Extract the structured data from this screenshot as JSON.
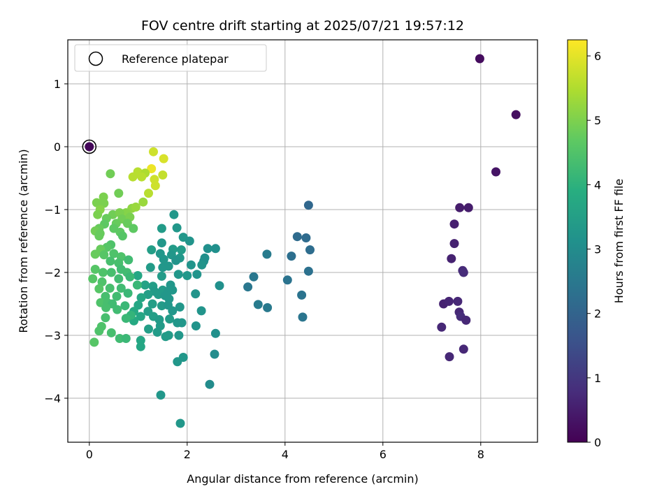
{
  "chart_data": {
    "type": "scatter",
    "title": "FOV centre drift starting at 2025/07/21 19:57:12",
    "xlabel": "Angular distance from reference (arcmin)",
    "ylabel": "Rotation from reference (arcmin)",
    "xlim": [
      -0.44,
      9.16
    ],
    "ylim": [
      -4.7,
      1.7
    ],
    "xticks": [
      0,
      2,
      4,
      6,
      8
    ],
    "yticks": [
      1,
      0,
      -1,
      -2,
      -3,
      -4
    ],
    "xtick_labels": [
      "0",
      "2",
      "4",
      "6",
      "8"
    ],
    "ytick_labels": [
      "1",
      "0",
      "−1",
      "−2",
      "−3",
      "−4"
    ],
    "grid": true,
    "legend": {
      "position": "upper-left",
      "entries": [
        "Reference platepar"
      ]
    },
    "reference_point": {
      "x": 0,
      "y": 0
    },
    "colormap": "viridis",
    "colorbar": {
      "label": "Hours from first FF file",
      "range": [
        0,
        6.25
      ],
      "ticks": [
        0,
        1,
        2,
        3,
        4,
        5,
        6
      ],
      "tick_labels": [
        "0",
        "1",
        "2",
        "3",
        "4",
        "5",
        "6"
      ]
    },
    "points": [
      [
        0,
        0,
        0.1
      ],
      [
        7.98,
        1.4,
        0.2
      ],
      [
        8.72,
        0.51,
        0.25
      ],
      [
        8.31,
        -0.4,
        0.35
      ],
      [
        7.57,
        -0.97,
        0.5
      ],
      [
        7.75,
        -0.97,
        0.5
      ],
      [
        7.46,
        -1.23,
        0.55
      ],
      [
        7.46,
        -1.54,
        0.6
      ],
      [
        7.4,
        -1.78,
        0.6
      ],
      [
        7.63,
        -1.97,
        0.75
      ],
      [
        7.65,
        -2.0,
        0.8
      ],
      [
        7.24,
        -2.5,
        0.6
      ],
      [
        7.35,
        -2.46,
        0.65
      ],
      [
        7.53,
        -2.46,
        0.7
      ],
      [
        7.56,
        -2.63,
        0.7
      ],
      [
        7.59,
        -2.7,
        0.8
      ],
      [
        7.7,
        -2.76,
        0.7
      ],
      [
        7.2,
        -2.87,
        0.7
      ],
      [
        7.36,
        -3.34,
        0.7
      ],
      [
        7.65,
        -3.22,
        0.7
      ],
      [
        4.48,
        -0.93,
        2.1
      ],
      [
        4.25,
        -1.43,
        2.2
      ],
      [
        4.43,
        -1.45,
        2.2
      ],
      [
        4.51,
        -1.64,
        2.25
      ],
      [
        4.13,
        -1.74,
        2.3
      ],
      [
        3.63,
        -1.71,
        2.6
      ],
      [
        4.48,
        -1.98,
        2.35
      ],
      [
        4.05,
        -2.12,
        2.4
      ],
      [
        3.36,
        -2.07,
        2.5
      ],
      [
        3.24,
        -2.23,
        2.5
      ],
      [
        4.34,
        -2.36,
        2.4
      ],
      [
        3.45,
        -2.51,
        2.6
      ],
      [
        3.64,
        -2.56,
        2.55
      ],
      [
        4.36,
        -2.71,
        2.45
      ],
      [
        1.73,
        -1.08,
        3.3
      ],
      [
        1.79,
        -1.29,
        3.3
      ],
      [
        1.48,
        -1.3,
        3.4
      ],
      [
        1.92,
        -1.44,
        3.3
      ],
      [
        2.05,
        -1.5,
        3.2
      ],
      [
        1.48,
        -1.53,
        3.3
      ],
      [
        1.27,
        -1.64,
        3.5
      ],
      [
        1.71,
        -1.63,
        3.4
      ],
      [
        1.88,
        -1.64,
        3.4
      ],
      [
        2.42,
        -1.62,
        3.1
      ],
      [
        2.58,
        -1.62,
        3.1
      ],
      [
        1.45,
        -1.7,
        3.3
      ],
      [
        1.68,
        -1.72,
        3.3
      ],
      [
        1.85,
        -1.77,
        3.3
      ],
      [
        2.36,
        -1.77,
        3.1
      ],
      [
        1.52,
        -1.79,
        3.3
      ],
      [
        1.77,
        -1.81,
        3.2
      ],
      [
        2.34,
        -1.82,
        3.1
      ],
      [
        1.25,
        -1.92,
        3.4
      ],
      [
        1.5,
        -1.92,
        3.3
      ],
      [
        1.62,
        -1.9,
        3.3
      ],
      [
        2.08,
        -1.88,
        3.2
      ],
      [
        2.3,
        -1.88,
        3.2
      ],
      [
        1.48,
        -2.06,
        3.4
      ],
      [
        1.82,
        -2.03,
        3.3
      ],
      [
        2.0,
        -2.05,
        3.3
      ],
      [
        2.2,
        -2.03,
        3.2
      ],
      [
        0.99,
        -2.05,
        3.7
      ],
      [
        1.14,
        -2.2,
        3.6
      ],
      [
        1.3,
        -2.22,
        3.5
      ],
      [
        1.66,
        -2.2,
        3.3
      ],
      [
        1.33,
        -2.3,
        3.4
      ],
      [
        1.5,
        -2.28,
        3.4
      ],
      [
        1.61,
        -2.3,
        3.3
      ],
      [
        1.7,
        -2.28,
        3.3
      ],
      [
        1.2,
        -2.35,
        3.5
      ],
      [
        1.41,
        -2.35,
        3.4
      ],
      [
        1.55,
        -2.37,
        3.3
      ],
      [
        2.17,
        -2.34,
        3.2
      ],
      [
        1.06,
        -2.4,
        3.7
      ],
      [
        1.63,
        -2.42,
        3.3
      ],
      [
        1.29,
        -2.5,
        3.5
      ],
      [
        1.48,
        -2.53,
        3.4
      ],
      [
        1.0,
        -2.52,
        3.7
      ],
      [
        1.61,
        -2.52,
        3.3
      ],
      [
        1.85,
        -2.55,
        3.3
      ],
      [
        0.91,
        -2.62,
        3.8
      ],
      [
        1.2,
        -2.62,
        3.5
      ],
      [
        1.7,
        -2.61,
        3.3
      ],
      [
        2.29,
        -2.61,
        3.2
      ],
      [
        1.05,
        -2.7,
        3.7
      ],
      [
        1.31,
        -2.7,
        3.5
      ],
      [
        1.43,
        -2.75,
        3.4
      ],
      [
        1.64,
        -2.74,
        3.4
      ],
      [
        1.8,
        -2.8,
        3.3
      ],
      [
        0.91,
        -2.77,
        3.8
      ],
      [
        1.45,
        -2.85,
        3.4
      ],
      [
        1.89,
        -2.8,
        3.3
      ],
      [
        2.18,
        -2.85,
        3.2
      ],
      [
        1.21,
        -2.9,
        3.5
      ],
      [
        1.39,
        -2.95,
        3.4
      ],
      [
        1.62,
        -3.0,
        3.4
      ],
      [
        1.83,
        -3.0,
        3.3
      ],
      [
        2.58,
        -2.97,
        3.1
      ],
      [
        1.05,
        -3.08,
        3.7
      ],
      [
        1.56,
        -3.02,
        3.4
      ],
      [
        1.05,
        -3.18,
        3.7
      ],
      [
        1.92,
        -3.35,
        3.3
      ],
      [
        1.8,
        -3.42,
        3.3
      ],
      [
        2.56,
        -3.3,
        3.0
      ],
      [
        2.46,
        -3.78,
        3.0
      ],
      [
        1.46,
        -3.95,
        3.3
      ],
      [
        1.86,
        -4.4,
        3.3
      ],
      [
        2.66,
        -2.21,
        3.1
      ],
      [
        0.43,
        -0.43,
        4.9
      ],
      [
        0.15,
        -0.89,
        5.0
      ],
      [
        0.29,
        -0.8,
        5.0
      ],
      [
        0.3,
        -0.9,
        5.0
      ],
      [
        0.22,
        -1.0,
        5.1
      ],
      [
        0.6,
        -0.74,
        4.9
      ],
      [
        0.17,
        -1.08,
        5.0
      ],
      [
        0.87,
        -0.98,
        5.2
      ],
      [
        0.75,
        -1.05,
        5.1
      ],
      [
        0.95,
        -0.96,
        5.3
      ],
      [
        1.1,
        -0.88,
        5.3
      ],
      [
        0.48,
        -1.08,
        4.9
      ],
      [
        0.62,
        -1.05,
        5.0
      ],
      [
        0.35,
        -1.14,
        4.8
      ],
      [
        0.67,
        -1.15,
        4.9
      ],
      [
        0.83,
        -1.12,
        5.0
      ],
      [
        0.31,
        -1.23,
        4.7
      ],
      [
        0.55,
        -1.22,
        4.8
      ],
      [
        0.78,
        -1.22,
        4.8
      ],
      [
        0.2,
        -1.3,
        4.8
      ],
      [
        0.5,
        -1.3,
        4.7
      ],
      [
        0.12,
        -1.34,
        4.9
      ],
      [
        0.22,
        -1.38,
        4.8
      ],
      [
        0.63,
        -1.36,
        4.7
      ],
      [
        0.9,
        -1.3,
        4.7
      ],
      [
        0.2,
        -1.42,
        4.8
      ],
      [
        0.68,
        -1.42,
        4.6
      ],
      [
        0.44,
        -1.56,
        4.5
      ],
      [
        0.36,
        -1.6,
        4.6
      ],
      [
        0.23,
        -1.63,
        4.8
      ],
      [
        0.3,
        -1.72,
        4.6
      ],
      [
        0.12,
        -1.71,
        4.8
      ],
      [
        0.5,
        -1.7,
        4.5
      ],
      [
        0.65,
        -1.75,
        4.5
      ],
      [
        0.43,
        -1.82,
        4.4
      ],
      [
        0.6,
        -1.85,
        4.4
      ],
      [
        0.8,
        -1.8,
        4.3
      ],
      [
        0.12,
        -1.95,
        4.6
      ],
      [
        0.28,
        -2.0,
        4.5
      ],
      [
        0.45,
        -2.0,
        4.4
      ],
      [
        0.65,
        -1.95,
        4.3
      ],
      [
        0.77,
        -2.0,
        4.3
      ],
      [
        0.07,
        -2.1,
        4.6
      ],
      [
        0.26,
        -2.15,
        4.5
      ],
      [
        0.6,
        -2.1,
        4.3
      ],
      [
        0.83,
        -2.07,
        4.2
      ],
      [
        0.2,
        -2.26,
        4.6
      ],
      [
        0.42,
        -2.25,
        4.4
      ],
      [
        0.65,
        -2.25,
        4.3
      ],
      [
        0.98,
        -2.2,
        4.2
      ],
      [
        0.33,
        -2.38,
        4.4
      ],
      [
        0.56,
        -2.38,
        4.3
      ],
      [
        0.79,
        -2.33,
        4.2
      ],
      [
        0.23,
        -2.48,
        4.5
      ],
      [
        0.37,
        -2.48,
        4.4
      ],
      [
        0.47,
        -2.5,
        4.3
      ],
      [
        0.73,
        -2.53,
        4.2
      ],
      [
        0.34,
        -2.56,
        4.4
      ],
      [
        0.57,
        -2.59,
        4.3
      ],
      [
        0.85,
        -2.68,
        4.1
      ],
      [
        0.33,
        -2.72,
        4.4
      ],
      [
        0.75,
        -2.73,
        4.2
      ],
      [
        0.25,
        -2.86,
        4.5
      ],
      [
        0.2,
        -2.93,
        4.5
      ],
      [
        0.45,
        -2.96,
        4.4
      ],
      [
        0.62,
        -3.05,
        4.3
      ],
      [
        0.75,
        -3.05,
        4.2
      ],
      [
        0.1,
        -3.11,
        4.6
      ],
      [
        1.31,
        -0.08,
        5.8
      ],
      [
        1.52,
        -0.19,
        5.9
      ],
      [
        1.27,
        -0.35,
        6.1
      ],
      [
        0.99,
        -0.4,
        5.6
      ],
      [
        1.14,
        -0.42,
        5.5
      ],
      [
        1.07,
        -0.48,
        5.6
      ],
      [
        1.5,
        -0.45,
        5.7
      ],
      [
        0.89,
        -0.48,
        5.6
      ],
      [
        1.33,
        -0.52,
        5.8
      ],
      [
        1.35,
        -0.62,
        5.8
      ],
      [
        1.21,
        -0.74,
        5.6
      ]
    ]
  }
}
